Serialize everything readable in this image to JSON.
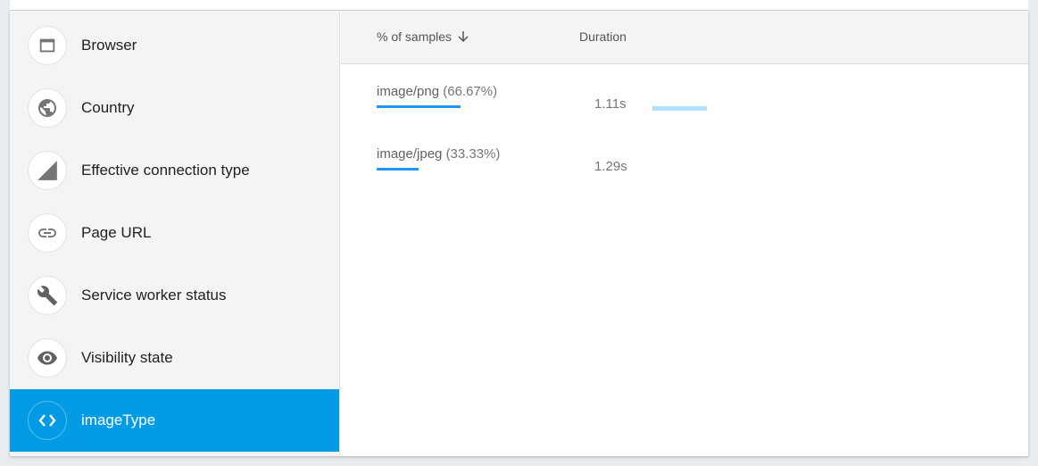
{
  "sidebar": {
    "items": [
      {
        "label": "Browser",
        "icon": "browser-window-icon"
      },
      {
        "label": "Country",
        "icon": "globe-icon"
      },
      {
        "label": "Effective connection type",
        "icon": "signal-icon"
      },
      {
        "label": "Page URL",
        "icon": "link-icon"
      },
      {
        "label": "Service worker status",
        "icon": "wrench-icon"
      },
      {
        "label": "Visibility state",
        "icon": "eye-icon"
      },
      {
        "label": "imageType",
        "icon": "code-icon",
        "active": true
      }
    ]
  },
  "table": {
    "headers": {
      "samples": "% of samples",
      "duration": "Duration"
    },
    "rows": [
      {
        "name": "image/png",
        "pct_label": "(66.67%)",
        "pct": 66.67,
        "duration": "1.11s",
        "duration_bar": true
      },
      {
        "name": "image/jpeg",
        "pct_label": "(33.33%)",
        "pct": 33.33,
        "duration": "1.29s",
        "duration_bar": false
      }
    ]
  },
  "colors": {
    "accent": "#039be5",
    "bar": "#2196f3",
    "duration_bar": "#b3e0fb"
  }
}
